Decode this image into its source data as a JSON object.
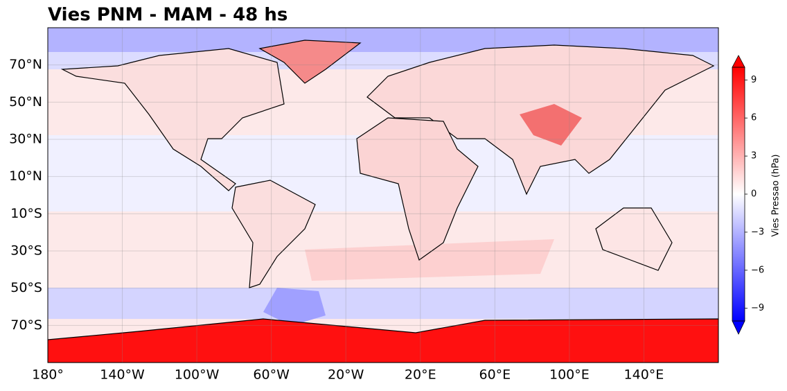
{
  "title": "Vies PNM - MAM - 48 hs",
  "map": {
    "xlim": [
      -180,
      180
    ],
    "ylim": [
      -90,
      90
    ],
    "xticks": [
      {
        "value": -180,
        "label": "180°"
      },
      {
        "value": -140,
        "label": "140°W"
      },
      {
        "value": -100,
        "label": "100°W"
      },
      {
        "value": -60,
        "label": "60°W"
      },
      {
        "value": -20,
        "label": "20°W"
      },
      {
        "value": 20,
        "label": "20°E"
      },
      {
        "value": 60,
        "label": "60°E"
      },
      {
        "value": 100,
        "label": "100°E"
      },
      {
        "value": 140,
        "label": "140°E"
      }
    ],
    "yticks": [
      {
        "value": 70,
        "label": "70°N"
      },
      {
        "value": 50,
        "label": "50°N"
      },
      {
        "value": 30,
        "label": "30°N"
      },
      {
        "value": 10,
        "label": "10°N"
      },
      {
        "value": -10,
        "label": "10°S"
      },
      {
        "value": -30,
        "label": "30°S"
      },
      {
        "value": -50,
        "label": "50°S"
      },
      {
        "value": -70,
        "label": "70°S"
      }
    ],
    "grid": true
  },
  "colorbar": {
    "label": "Vies Pressao (hPa)",
    "lim": [
      -10,
      10
    ],
    "ticks": [
      {
        "value": 9,
        "label": "9"
      },
      {
        "value": 6,
        "label": "6"
      },
      {
        "value": 3,
        "label": "3"
      },
      {
        "value": 0,
        "label": "0"
      },
      {
        "value": -3,
        "label": "−3"
      },
      {
        "value": -6,
        "label": "−6"
      },
      {
        "value": -9,
        "label": "−9"
      }
    ]
  }
}
